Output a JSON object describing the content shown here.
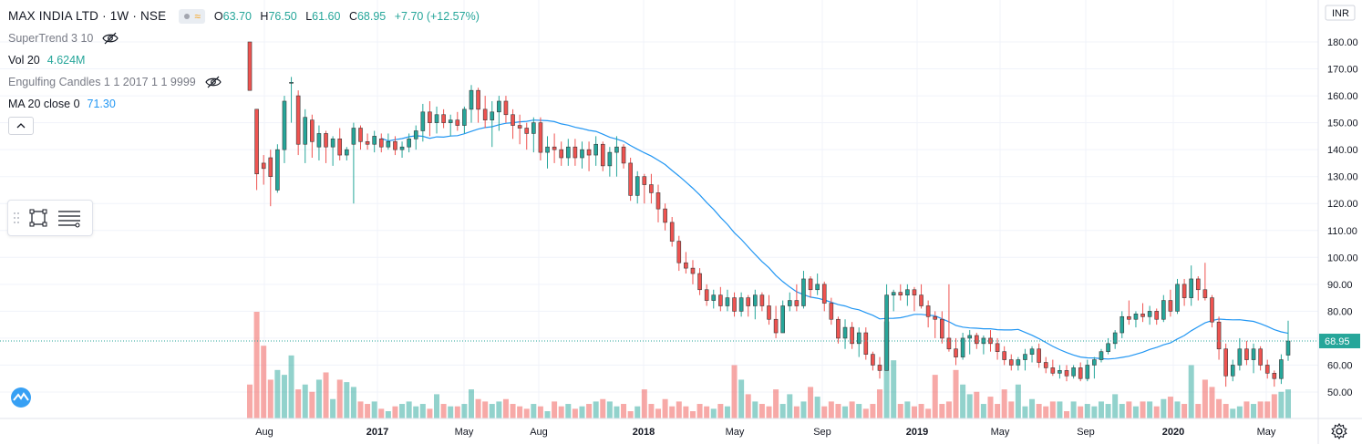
{
  "header": {
    "symbol_title": "MAX INDIA LTD · 1W · NSE",
    "ohlc": {
      "open_label": "O",
      "open": "63.70",
      "high_label": "H",
      "high": "76.50",
      "low_label": "L",
      "low": "61.60",
      "close_label": "C",
      "close": "68.95",
      "change": "+7.70 (+12.57%)"
    }
  },
  "indicators": [
    {
      "name": "SuperTrend 3 10",
      "value": "",
      "icon": "eye-hidden-icon"
    },
    {
      "name": "Vol 20",
      "value": "4.624M",
      "icon": ""
    },
    {
      "name": "Engulfing Candles 1 1 2017 1 1 9999",
      "value": "",
      "icon": "eye-hidden-icon"
    },
    {
      "name": "MA 20 close 0",
      "value": "71.30",
      "icon": ""
    }
  ],
  "currency": "INR",
  "colors": {
    "up": "#26a69a",
    "down": "#ef5350",
    "ma": "#2196f3",
    "last_price_bg": "#26a69a"
  },
  "chart_data": {
    "type": "candlestick",
    "price_axis": {
      "ticks": [
        "180.00",
        "170.00",
        "160.00",
        "150.00",
        "140.00",
        "130.00",
        "120.00",
        "110.00",
        "100.00",
        "90.00",
        "80.00",
        "70.00",
        "60.00",
        "50.00"
      ],
      "ylim": [
        45,
        185
      ]
    },
    "time_axis": {
      "ticks": [
        "Aug",
        "2017",
        "May",
        "Aug",
        "2018",
        "May",
        "Sep",
        "2019",
        "May",
        "Sep",
        "2020",
        "May"
      ]
    },
    "last_price": "68.95",
    "grid": true,
    "series": [
      {
        "name": "MAX INDIA LTD",
        "interval": "1W",
        "ohlc": [
          [
            180,
            180,
            162,
            162
          ],
          [
            155,
            155,
            125,
            131
          ],
          [
            135,
            138,
            127,
            133
          ],
          [
            137,
            140,
            119,
            130
          ],
          [
            125,
            142,
            124,
            140
          ],
          [
            140,
            160,
            135,
            158
          ],
          [
            165,
            167,
            150,
            165
          ],
          [
            160,
            162,
            138,
            142
          ],
          [
            142,
            155,
            135,
            152
          ],
          [
            151,
            153,
            137,
            143
          ],
          [
            141,
            149,
            136,
            146
          ],
          [
            146,
            147,
            135,
            141
          ],
          [
            141,
            145,
            134,
            144
          ],
          [
            144,
            148,
            136,
            138
          ],
          [
            138,
            141,
            136,
            140
          ],
          [
            142,
            150,
            120,
            148
          ],
          [
            148,
            149,
            140,
            143
          ],
          [
            143,
            146,
            140,
            142
          ],
          [
            142,
            147,
            139,
            145
          ],
          [
            144,
            146,
            139,
            141
          ],
          [
            141,
            146,
            140,
            143
          ],
          [
            143,
            145,
            138,
            140
          ],
          [
            140,
            143,
            137,
            141
          ],
          [
            141,
            146,
            139,
            144
          ],
          [
            144,
            149,
            140,
            147
          ],
          [
            147,
            157,
            143,
            154
          ],
          [
            154,
            158,
            145,
            150
          ],
          [
            150,
            156,
            146,
            153
          ],
          [
            153,
            155,
            148,
            150
          ],
          [
            150,
            153,
            145,
            151
          ],
          [
            151,
            154,
            147,
            149
          ],
          [
            149,
            156,
            146,
            155
          ],
          [
            155,
            164,
            150,
            162
          ],
          [
            162,
            163,
            150,
            155
          ],
          [
            155,
            160,
            148,
            151
          ],
          [
            151,
            158,
            141,
            154
          ],
          [
            154,
            160,
            147,
            158
          ],
          [
            158,
            160,
            150,
            153
          ],
          [
            153,
            155,
            144,
            149
          ],
          [
            149,
            153,
            142,
            148
          ],
          [
            148,
            150,
            140,
            146
          ],
          [
            146,
            152,
            139,
            150
          ],
          [
            150,
            152,
            136,
            139
          ],
          [
            139,
            145,
            133,
            141
          ],
          [
            141,
            146,
            135,
            140
          ],
          [
            140,
            143,
            134,
            137
          ],
          [
            137,
            144,
            134,
            141
          ],
          [
            141,
            144,
            134,
            137
          ],
          [
            137,
            143,
            133,
            140
          ],
          [
            140,
            143,
            132,
            138
          ],
          [
            138,
            145,
            134,
            142
          ],
          [
            142,
            143,
            132,
            134
          ],
          [
            134,
            141,
            130,
            139
          ],
          [
            139,
            145,
            130,
            141
          ],
          [
            141,
            142,
            133,
            135
          ],
          [
            135,
            137,
            121,
            123
          ],
          [
            123,
            132,
            120,
            130
          ],
          [
            130,
            131,
            120,
            127
          ],
          [
            127,
            131,
            120,
            124
          ],
          [
            124,
            127,
            113,
            118
          ],
          [
            118,
            120,
            110,
            113
          ],
          [
            113,
            115,
            104,
            106
          ],
          [
            106,
            108,
            95,
            98
          ],
          [
            98,
            102,
            94,
            96
          ],
          [
            96,
            99,
            90,
            94
          ],
          [
            94,
            96,
            86,
            88
          ],
          [
            88,
            90,
            82,
            84
          ],
          [
            84,
            88,
            81,
            86
          ],
          [
            86,
            89,
            80,
            82
          ],
          [
            82,
            88,
            80,
            85
          ],
          [
            85,
            87,
            78,
            80
          ],
          [
            80,
            87,
            78,
            85
          ],
          [
            85,
            86,
            78,
            82
          ],
          [
            82,
            88,
            77,
            86
          ],
          [
            86,
            87,
            80,
            82
          ],
          [
            82,
            86,
            75,
            77
          ],
          [
            77,
            82,
            70,
            72
          ],
          [
            72,
            84,
            72,
            82
          ],
          [
            82,
            87,
            80,
            84
          ],
          [
            84,
            90,
            80,
            82
          ],
          [
            82,
            95,
            81,
            92
          ],
          [
            92,
            93,
            85,
            88
          ],
          [
            88,
            94,
            86,
            90
          ],
          [
            90,
            91,
            80,
            83
          ],
          [
            83,
            85,
            75,
            77
          ],
          [
            77,
            78,
            68,
            70
          ],
          [
            70,
            77,
            66,
            74
          ],
          [
            74,
            76,
            66,
            68
          ],
          [
            68,
            74,
            63,
            72
          ],
          [
            72,
            74,
            62,
            64
          ],
          [
            64,
            65,
            58,
            60
          ],
          [
            60,
            63,
            55,
            58
          ],
          [
            58,
            90,
            58,
            86
          ],
          [
            86,
            88,
            80,
            87
          ],
          [
            87,
            90,
            84,
            86
          ],
          [
            86,
            90,
            82,
            88
          ],
          [
            88,
            89,
            80,
            86
          ],
          [
            86,
            90,
            81,
            82
          ],
          [
            82,
            84,
            74,
            78
          ],
          [
            78,
            80,
            70,
            77
          ],
          [
            77,
            80,
            68,
            70
          ],
          [
            70,
            90,
            65,
            66
          ],
          [
            66,
            70,
            60,
            63
          ],
          [
            63,
            72,
            62,
            70
          ],
          [
            70,
            73,
            64,
            71
          ],
          [
            71,
            72,
            66,
            68
          ],
          [
            68,
            71,
            64,
            70
          ],
          [
            70,
            73,
            65,
            68
          ],
          [
            68,
            70,
            62,
            65
          ],
          [
            65,
            67,
            60,
            62
          ],
          [
            62,
            64,
            58,
            60
          ],
          [
            60,
            63,
            58,
            62
          ],
          [
            62,
            66,
            58,
            64
          ],
          [
            64,
            67,
            61,
            66
          ],
          [
            66,
            68,
            59,
            61
          ],
          [
            61,
            63,
            57,
            59
          ],
          [
            59,
            62,
            56,
            57
          ],
          [
            57,
            60,
            55,
            58
          ],
          [
            58,
            60,
            54,
            56
          ],
          [
            56,
            60,
            55,
            59
          ],
          [
            59,
            61,
            54,
            55
          ],
          [
            55,
            62,
            54,
            60
          ],
          [
            60,
            63,
            55,
            62
          ],
          [
            62,
            66,
            61,
            65
          ],
          [
            65,
            70,
            64,
            68
          ],
          [
            68,
            73,
            66,
            72
          ],
          [
            72,
            80,
            70,
            78
          ],
          [
            78,
            84,
            75,
            77
          ],
          [
            77,
            80,
            74,
            79
          ],
          [
            79,
            83,
            76,
            78
          ],
          [
            78,
            82,
            75,
            80
          ],
          [
            80,
            81,
            75,
            77
          ],
          [
            77,
            86,
            76,
            84
          ],
          [
            84,
            88,
            78,
            80
          ],
          [
            80,
            92,
            79,
            90
          ],
          [
            90,
            92,
            82,
            85
          ],
          [
            85,
            97,
            82,
            92
          ],
          [
            92,
            93,
            84,
            88
          ],
          [
            88,
            98,
            84,
            85
          ],
          [
            85,
            86,
            74,
            76
          ],
          [
            76,
            78,
            62,
            66
          ],
          [
            66,
            68,
            52,
            56
          ],
          [
            56,
            62,
            54,
            60
          ],
          [
            60,
            70,
            58,
            66
          ],
          [
            66,
            69,
            60,
            62
          ],
          [
            62,
            68,
            57,
            66
          ],
          [
            66,
            67,
            58,
            60
          ],
          [
            60,
            62,
            55,
            57
          ],
          [
            57,
            58,
            52,
            55
          ],
          [
            55,
            64,
            53,
            62
          ],
          [
            63.7,
            76.5,
            61.6,
            68.95
          ]
        ]
      },
      {
        "name": "Vol",
        "values": [
          14,
          44,
          30,
          16,
          20,
          18,
          26,
          12,
          14,
          11,
          16,
          19,
          8,
          16,
          15,
          13,
          7,
          6,
          7,
          4,
          3,
          5,
          6,
          7,
          5,
          6,
          4,
          10,
          6,
          5,
          5,
          6,
          12,
          8,
          7,
          6,
          7,
          8,
          6,
          5,
          4,
          6,
          5,
          3,
          7,
          5,
          6,
          4,
          5,
          6,
          7,
          8,
          7,
          5,
          6,
          3,
          5,
          12,
          6,
          4,
          8,
          5,
          7,
          5,
          3,
          6,
          5,
          4,
          6,
          5,
          22,
          16,
          10,
          7,
          6,
          5,
          12,
          6,
          10,
          5,
          7,
          13,
          9,
          5,
          7,
          6,
          5,
          7,
          6,
          4,
          6,
          12,
          40,
          24,
          6,
          7,
          5,
          6,
          4,
          18,
          6,
          7,
          20,
          14,
          10,
          11,
          6,
          9,
          6,
          12,
          7,
          14,
          5,
          8,
          6,
          5,
          7,
          7,
          3,
          7,
          5,
          6,
          5,
          7,
          6,
          10,
          6,
          7,
          5,
          7,
          7,
          5,
          8,
          9,
          7,
          6,
          22,
          6,
          16,
          13,
          8,
          6,
          4,
          5,
          7,
          6,
          7,
          7,
          10,
          11,
          12
        ]
      }
    ]
  }
}
